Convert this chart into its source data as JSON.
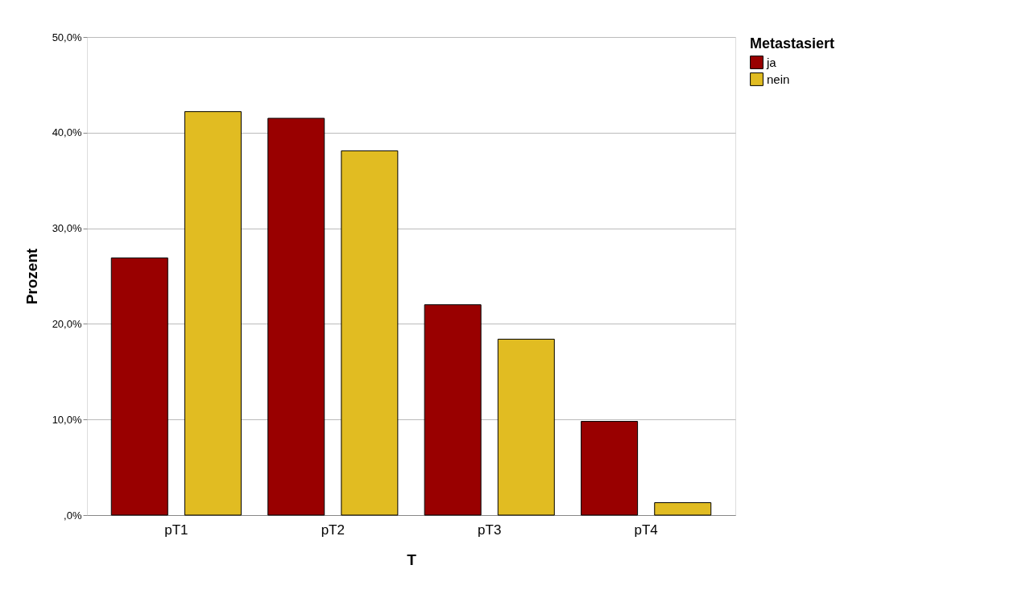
{
  "chart_data": {
    "type": "bar",
    "xlabel": "T",
    "ylabel": "Prozent",
    "legend_title": "Metastasiert",
    "categories": [
      "pT1",
      "pT2",
      "pT3",
      "pT4"
    ],
    "series": [
      {
        "name": "ja",
        "color": "#990000",
        "values": [
          26.9,
          41.5,
          22.0,
          9.8
        ]
      },
      {
        "name": "nein",
        "color": "#e1bc22",
        "values": [
          42.2,
          38.1,
          18.4,
          1.3
        ]
      }
    ],
    "ylim": [
      0,
      50
    ],
    "yticks": [
      {
        "value": 0,
        "label": ",0%"
      },
      {
        "value": 10,
        "label": "10,0%"
      },
      {
        "value": 20,
        "label": "20,0%"
      },
      {
        "value": 30,
        "label": "30,0%"
      },
      {
        "value": 40,
        "label": "40,0%"
      },
      {
        "value": 50,
        "label": "50,0%"
      }
    ],
    "grid": "y",
    "legend": "top right"
  }
}
